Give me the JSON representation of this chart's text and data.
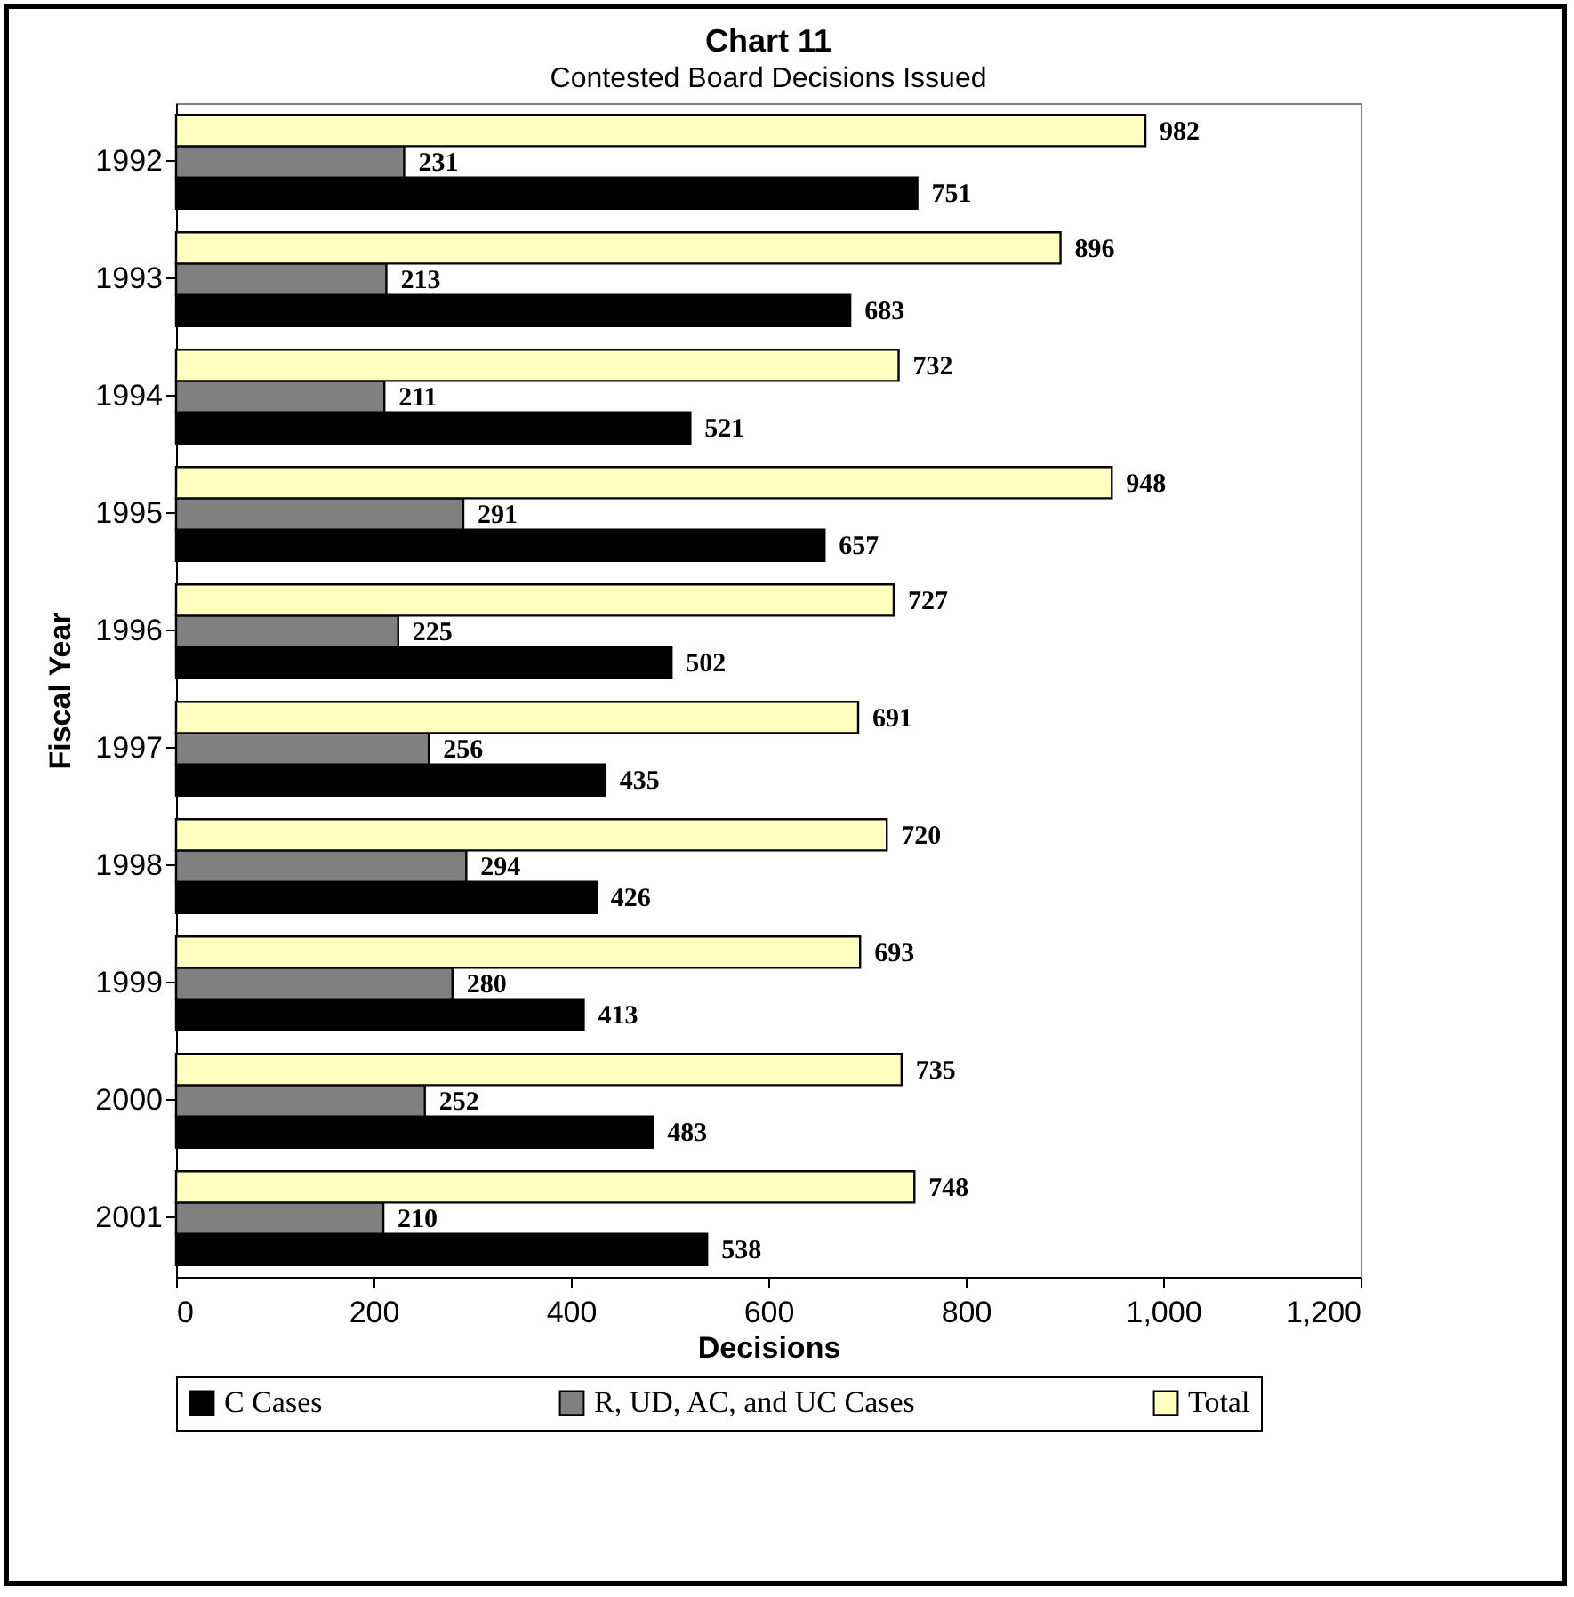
{
  "chart_data": {
    "type": "bar",
    "orientation": "horizontal",
    "title": "Chart 11",
    "subtitle": "Contested Board Decisions Issued",
    "xlabel": "Decisions",
    "ylabel": "Fiscal Year",
    "categories": [
      "1992",
      "1993",
      "1994",
      "1995",
      "1996",
      "1997",
      "1998",
      "1999",
      "2000",
      "2001"
    ],
    "series": [
      {
        "name": "C Cases",
        "color": "#000000",
        "values": [
          751,
          683,
          521,
          657,
          502,
          435,
          426,
          413,
          483,
          538
        ]
      },
      {
        "name": "R, UD, AC, and UC Cases",
        "color": "#808080",
        "values": [
          231,
          213,
          211,
          291,
          225,
          256,
          294,
          280,
          252,
          210
        ]
      },
      {
        "name": "Total",
        "color": "#ffffc0",
        "values": [
          982,
          896,
          732,
          948,
          727,
          691,
          720,
          693,
          735,
          748
        ]
      }
    ],
    "xlim": [
      0,
      1200
    ],
    "xticks": [
      0,
      200,
      400,
      600,
      800,
      {
        "value": 1000,
        "label": "1,000"
      },
      {
        "value": 1200,
        "label": "1,200"
      }
    ],
    "data_labels": true,
    "grid": false,
    "legend": "bottom"
  }
}
